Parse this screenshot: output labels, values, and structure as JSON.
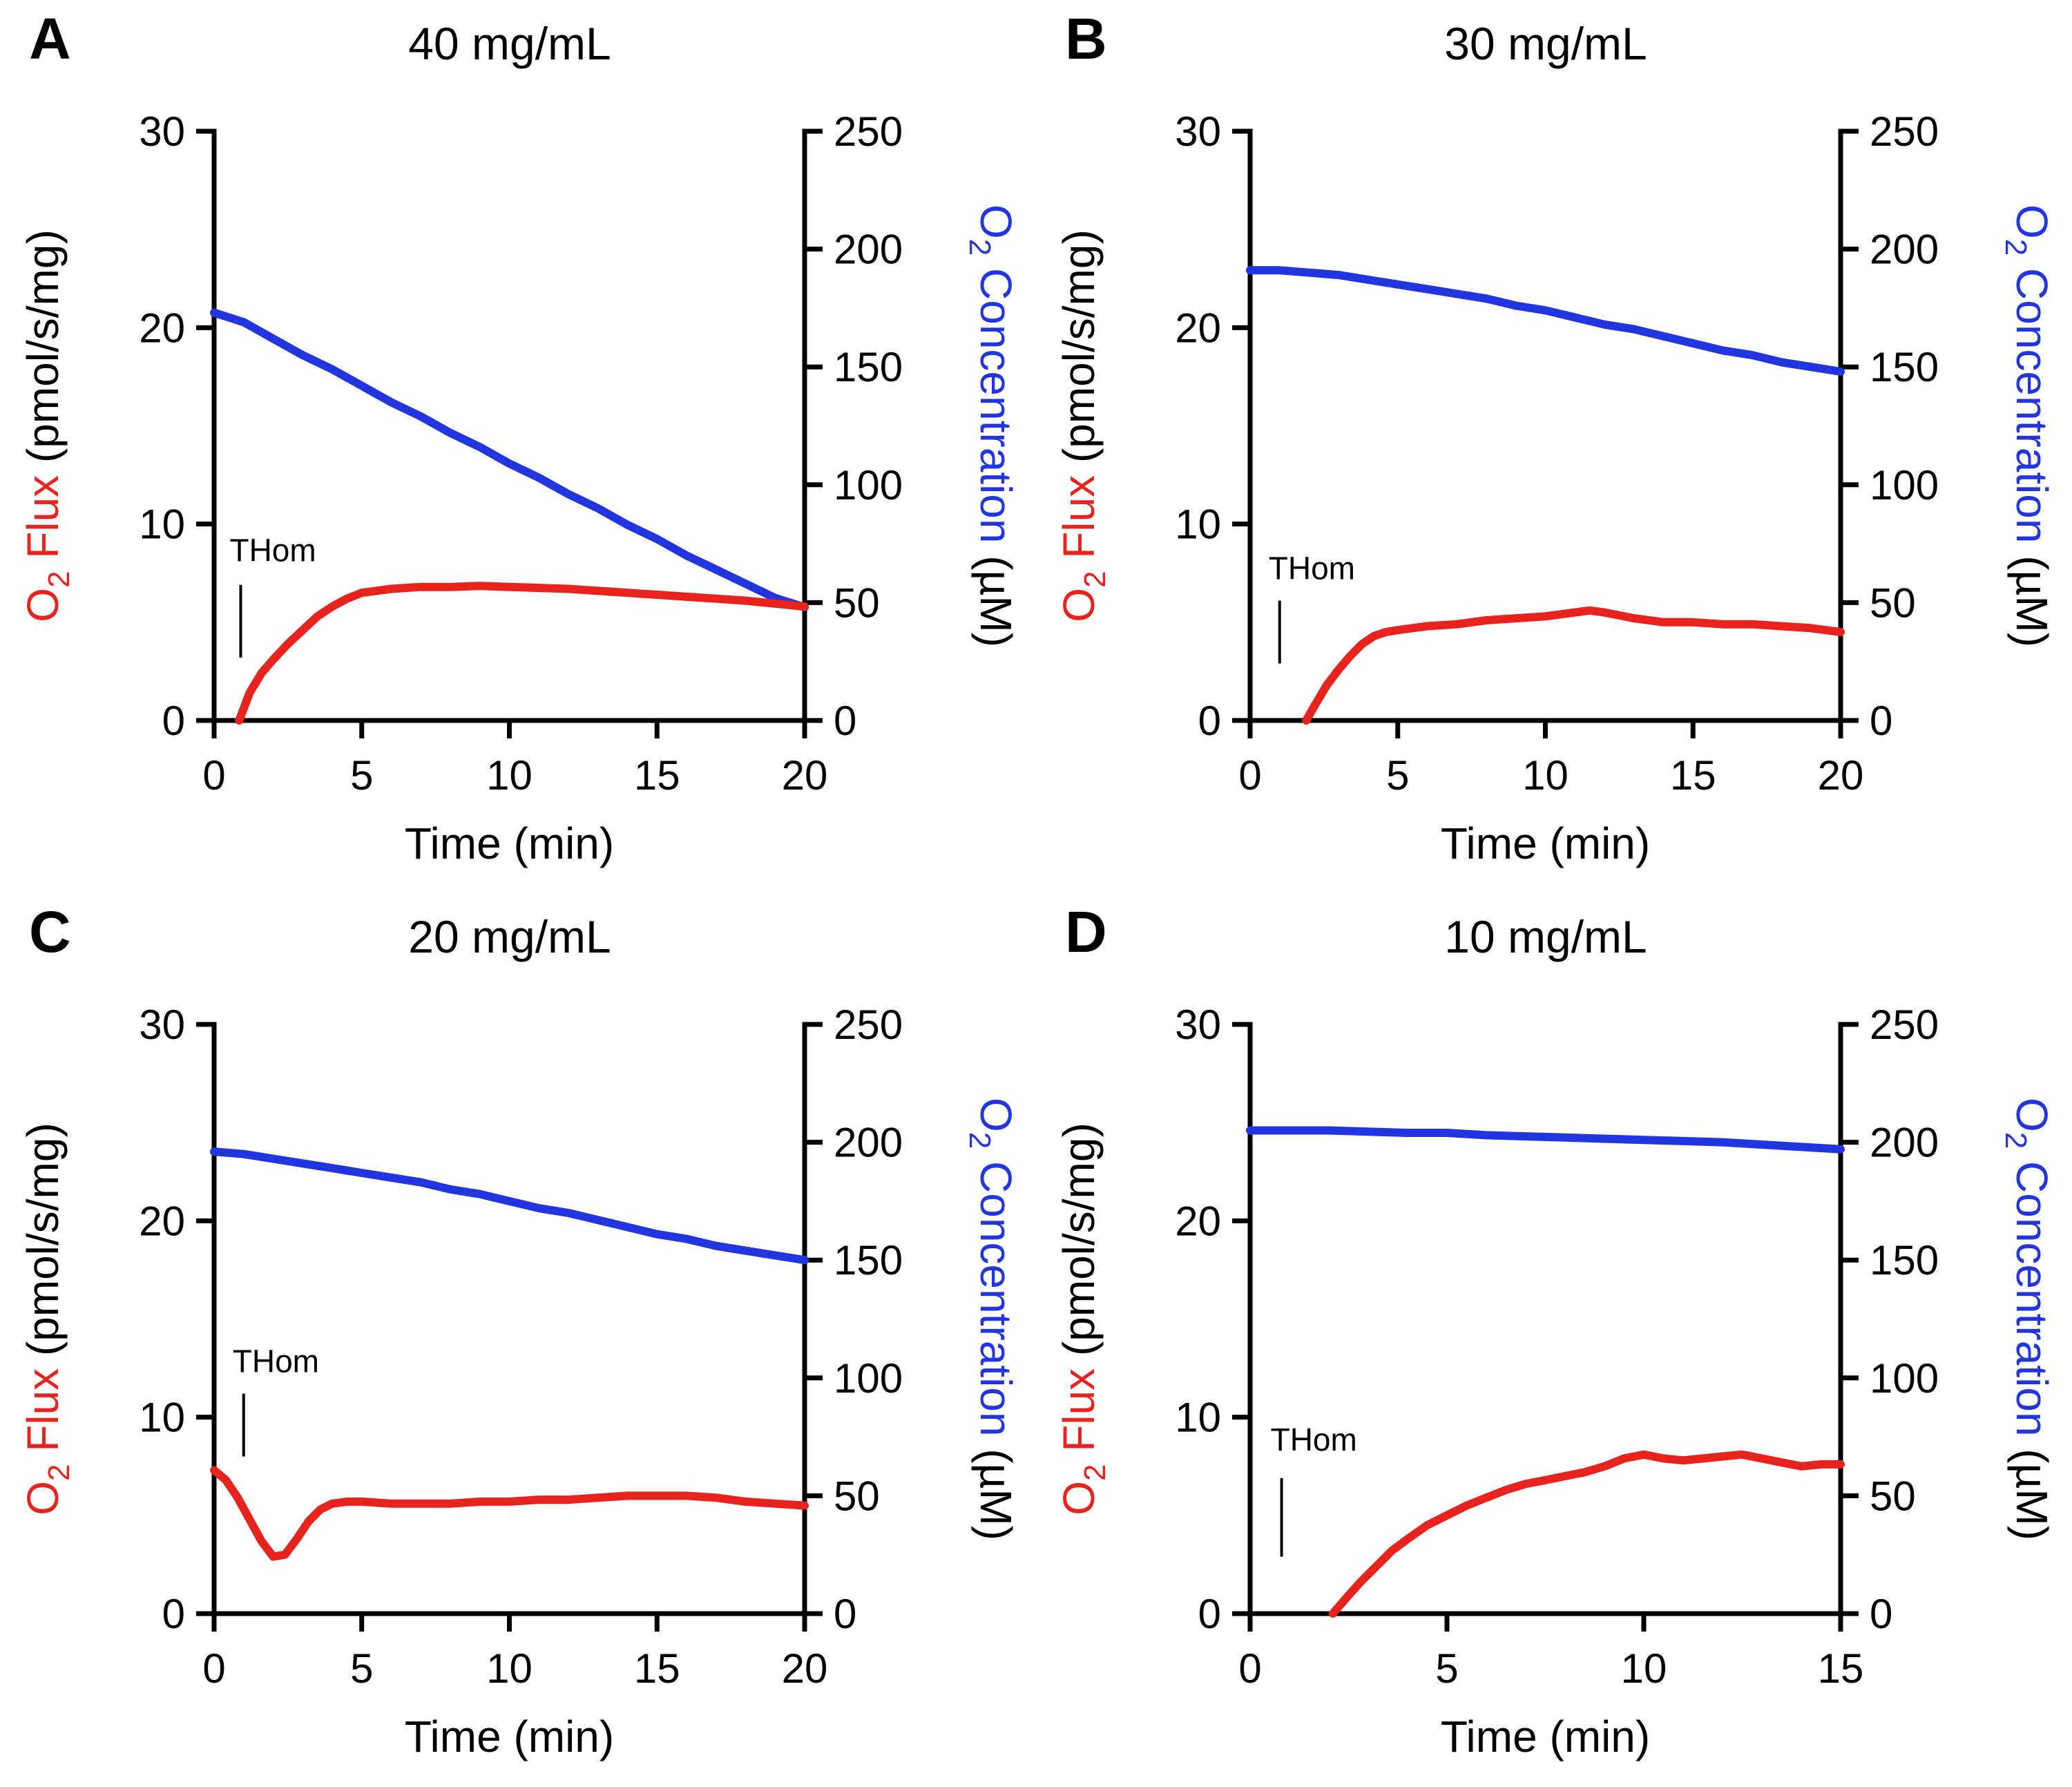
{
  "figure": {
    "background": "#ffffff",
    "colors": {
      "flux": "#e8231d",
      "concentration": "#2135e0",
      "axis": "#000000"
    },
    "ylabel_left_text": "O2 Flux (pmol/s/mg)",
    "ylabel_right_text": "O2 Concentration (µM)",
    "ylabel_left_segments": [
      {
        "text": "O",
        "sub": false,
        "color": "#e8231d"
      },
      {
        "text": "2",
        "sub": true,
        "color": "#e8231d"
      },
      {
        "text": " Flux ",
        "sub": false,
        "color": "#e8231d"
      },
      {
        "text": "(pmol/s/mg)",
        "sub": false,
        "color": "#000000"
      }
    ],
    "ylabel_right_segments": [
      {
        "text": "O",
        "sub": false,
        "color": "#2135e0"
      },
      {
        "text": "2",
        "sub": true,
        "color": "#2135e0"
      },
      {
        "text": " Concentration ",
        "sub": false,
        "color": "#2135e0"
      },
      {
        "text": "(µM)",
        "sub": false,
        "color": "#000000"
      }
    ]
  },
  "chart_data": [
    {
      "panel_label": "A",
      "title": "40 mg/mL",
      "type": "line",
      "xlabel": "Time (min)",
      "xlim": [
        0,
        20
      ],
      "xticks": [
        0,
        5,
        10,
        15,
        20
      ],
      "ylim_left": [
        0,
        30
      ],
      "yticks_left": [
        0,
        10,
        20,
        30
      ],
      "ylim_right": [
        0,
        250
      ],
      "yticks_right": [
        0,
        50,
        100,
        150,
        200,
        250
      ],
      "annotation": {
        "label": "THom",
        "x": 0.9,
        "text_y": 8.1,
        "line_y": [
          3.2,
          6.9
        ]
      },
      "series": [
        {
          "name": "O2 Concentration",
          "axis": "right",
          "color": "#2135e0",
          "x": [
            0,
            1,
            2,
            3,
            4,
            5,
            6,
            7,
            8,
            9,
            10,
            11,
            12,
            13,
            14,
            15,
            16,
            17,
            18,
            19,
            20
          ],
          "y": [
            173,
            169,
            162,
            155,
            149,
            142,
            135,
            129,
            122,
            116,
            109,
            103,
            96,
            90,
            83,
            77,
            70,
            64,
            58,
            52,
            48
          ]
        },
        {
          "name": "O2 Flux",
          "axis": "left",
          "color": "#e8231d",
          "x": [
            0.85,
            1.2,
            1.6,
            2,
            2.5,
            3,
            3.5,
            4,
            4.5,
            5,
            5.5,
            6,
            7,
            8,
            9,
            10,
            11,
            12,
            13,
            14,
            15,
            16,
            17,
            18,
            19,
            20
          ],
          "y": [
            0,
            1.4,
            2.4,
            3.1,
            3.9,
            4.6,
            5.3,
            5.8,
            6.2,
            6.5,
            6.6,
            6.7,
            6.8,
            6.8,
            6.85,
            6.8,
            6.75,
            6.7,
            6.6,
            6.5,
            6.4,
            6.3,
            6.2,
            6.1,
            5.95,
            5.8
          ]
        }
      ]
    },
    {
      "panel_label": "B",
      "title": "30 mg/mL",
      "type": "line",
      "xlabel": "Time (min)",
      "xlim": [
        0,
        20
      ],
      "xticks": [
        0,
        5,
        10,
        15,
        20
      ],
      "ylim_left": [
        0,
        30
      ],
      "yticks_left": [
        0,
        10,
        20,
        30
      ],
      "ylim_right": [
        0,
        250
      ],
      "yticks_right": [
        0,
        50,
        100,
        150,
        200,
        250
      ],
      "annotation": {
        "label": "THom",
        "x": 1.0,
        "text_y": 7.2,
        "line_y": [
          2.9,
          6.1
        ]
      },
      "series": [
        {
          "name": "O2 Concentration",
          "axis": "right",
          "color": "#2135e0",
          "x": [
            0,
            1,
            2,
            3,
            4,
            5,
            6,
            7,
            8,
            9,
            10,
            11,
            12,
            13,
            14,
            15,
            16,
            17,
            18,
            19,
            20
          ],
          "y": [
            191,
            191,
            190,
            189,
            187,
            185,
            183,
            181,
            179,
            176,
            174,
            171,
            168,
            166,
            163,
            160,
            157,
            155,
            152,
            150,
            148
          ]
        },
        {
          "name": "O2 Flux",
          "axis": "left",
          "color": "#e8231d",
          "x": [
            1.9,
            2.2,
            2.6,
            3,
            3.4,
            3.8,
            4.2,
            4.6,
            5,
            6,
            7,
            8,
            9,
            10,
            11,
            11.5,
            12,
            13,
            14,
            15,
            16,
            17,
            18,
            19,
            20
          ],
          "y": [
            0,
            0.8,
            1.8,
            2.6,
            3.3,
            3.9,
            4.3,
            4.5,
            4.6,
            4.8,
            4.9,
            5.1,
            5.2,
            5.3,
            5.5,
            5.6,
            5.5,
            5.2,
            5.0,
            5.0,
            4.9,
            4.9,
            4.8,
            4.7,
            4.5
          ]
        }
      ]
    },
    {
      "panel_label": "C",
      "title": "20 mg/mL",
      "type": "line",
      "xlabel": "Time (min)",
      "xlim": [
        0,
        20
      ],
      "xticks": [
        0,
        5,
        10,
        15,
        20
      ],
      "ylim_left": [
        0,
        30
      ],
      "yticks_left": [
        0,
        10,
        20,
        30
      ],
      "ylim_right": [
        0,
        250
      ],
      "yticks_right": [
        0,
        50,
        100,
        150,
        200,
        250
      ],
      "annotation": {
        "label": "THom",
        "x": 1.0,
        "text_y": 12.3,
        "line_y": [
          8.0,
          11.2
        ]
      },
      "series": [
        {
          "name": "O2 Concentration",
          "axis": "right",
          "color": "#2135e0",
          "x": [
            0,
            1,
            2,
            3,
            4,
            5,
            6,
            7,
            8,
            9,
            10,
            11,
            12,
            13,
            14,
            15,
            16,
            17,
            18,
            19,
            20
          ],
          "y": [
            196,
            195,
            193,
            191,
            189,
            187,
            185,
            183,
            180,
            178,
            175,
            172,
            170,
            167,
            164,
            161,
            159,
            156,
            154,
            152,
            150
          ]
        },
        {
          "name": "O2 Flux",
          "axis": "left",
          "color": "#e8231d",
          "x": [
            0,
            0.4,
            0.8,
            1.2,
            1.6,
            2,
            2.4,
            2.8,
            3.2,
            3.6,
            4,
            4.5,
            5,
            6,
            7,
            8,
            9,
            10,
            11,
            12,
            13,
            14,
            15,
            16,
            17,
            18,
            19,
            20
          ],
          "y": [
            7.3,
            6.8,
            5.9,
            4.8,
            3.7,
            2.9,
            3.0,
            3.8,
            4.7,
            5.3,
            5.6,
            5.7,
            5.7,
            5.6,
            5.6,
            5.6,
            5.7,
            5.7,
            5.8,
            5.8,
            5.9,
            6.0,
            6.0,
            6.0,
            5.9,
            5.7,
            5.6,
            5.5
          ]
        }
      ]
    },
    {
      "panel_label": "D",
      "title": "10 mg/mL",
      "type": "line",
      "xlabel": "Time (min)",
      "xlim": [
        0,
        15
      ],
      "xticks": [
        0,
        5,
        10,
        15
      ],
      "ylim_left": [
        0,
        30
      ],
      "yticks_left": [
        0,
        10,
        20,
        30
      ],
      "ylim_right": [
        0,
        250
      ],
      "yticks_right": [
        0,
        50,
        100,
        150,
        200,
        250
      ],
      "annotation": {
        "label": "THom",
        "x": 0.8,
        "text_y": 8.3,
        "line_y": [
          2.9,
          6.9
        ]
      },
      "series": [
        {
          "name": "O2 Concentration",
          "axis": "right",
          "color": "#2135e0",
          "x": [
            0,
            1,
            2,
            3,
            4,
            5,
            6,
            7,
            8,
            9,
            10,
            11,
            12,
            13,
            14,
            15
          ],
          "y": [
            205,
            205,
            205,
            204.5,
            204,
            204,
            203,
            202.5,
            202,
            201.5,
            201,
            200.5,
            200,
            199,
            198,
            197
          ]
        },
        {
          "name": "O2 Flux",
          "axis": "left",
          "color": "#e8231d",
          "x": [
            2.1,
            2.4,
            2.8,
            3.2,
            3.6,
            4,
            4.5,
            5,
            5.5,
            6,
            6.5,
            7,
            7.5,
            8,
            8.5,
            9,
            9.5,
            10,
            10.5,
            11,
            11.5,
            12,
            12.5,
            13,
            13.5,
            14,
            14.5,
            15
          ],
          "y": [
            0,
            0.7,
            1.6,
            2.4,
            3.2,
            3.8,
            4.5,
            5.0,
            5.5,
            5.9,
            6.3,
            6.6,
            6.8,
            7.0,
            7.2,
            7.5,
            7.9,
            8.1,
            7.9,
            7.8,
            7.9,
            8.0,
            8.1,
            7.9,
            7.7,
            7.5,
            7.6,
            7.6
          ]
        }
      ]
    }
  ]
}
